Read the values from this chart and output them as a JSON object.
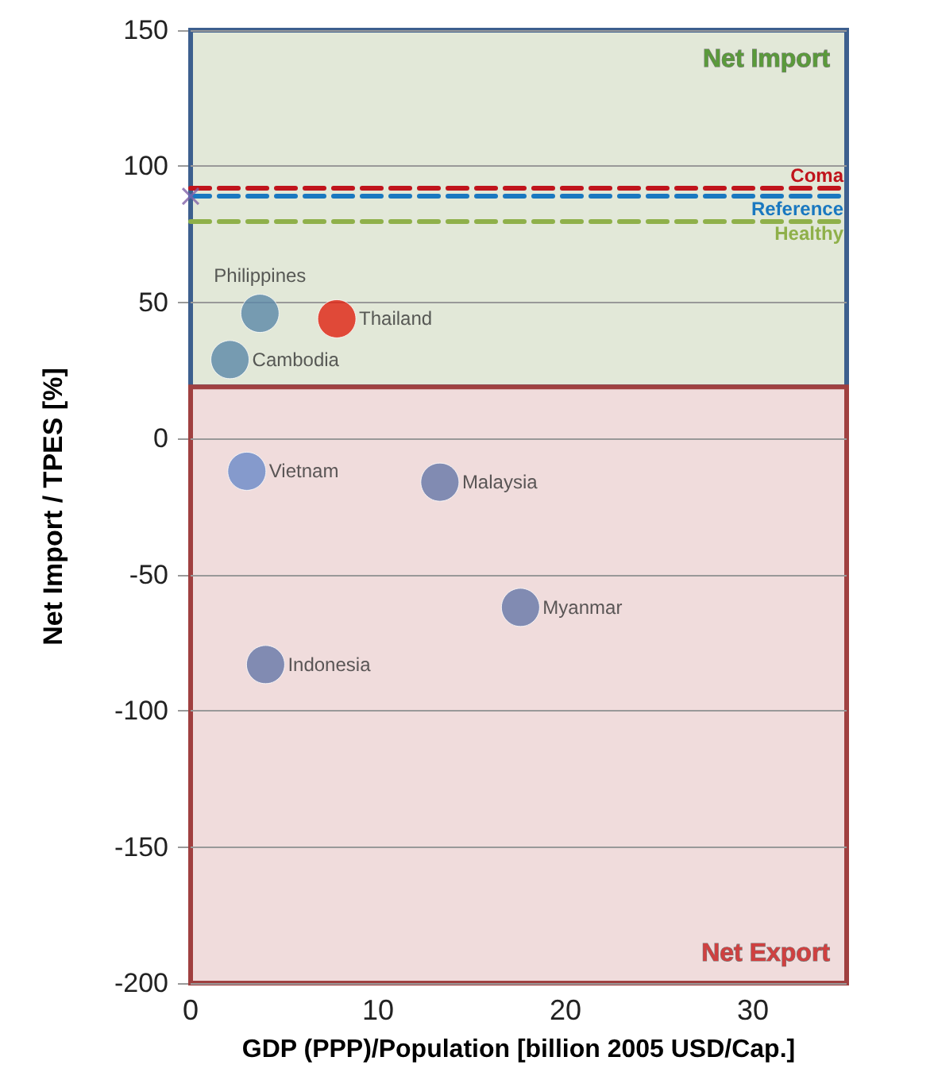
{
  "chart_data": {
    "type": "scatter",
    "xlabel": "GDP (PPP)/Population [billion 2005 USD/Cap.]",
    "ylabel": "Net Import / TPES [%]",
    "series": [
      {
        "type": "scatter",
        "x": [
          3.7,
          7.8,
          2.1,
          3.0,
          13.3,
          17.6,
          4.0
        ],
        "values": [
          46,
          44,
          29,
          -12,
          -16,
          -62,
          -83
        ],
        "colors": [
          "#5b87a8",
          "#e02010",
          "#5b87a8",
          "#6a8ac8",
          "#6577a8",
          "#6577a8",
          "#6577a8"
        ],
        "marker": "circle"
      },
      {
        "type": "scatter",
        "x": [
          0
        ],
        "values": [
          89
        ],
        "color": "#8060a8",
        "marker": "cross"
      }
    ],
    "annotations": [
      {
        "text": "Philippines",
        "x": 3.7,
        "y": 46
      },
      {
        "text": "Thailand",
        "x": 7.8,
        "y": 44
      },
      {
        "text": "Cambodia",
        "x": 2.1,
        "y": 29
      },
      {
        "text": "Vietnam",
        "x": 3.0,
        "y": -12
      },
      {
        "text": "Malaysia",
        "x": 13.3,
        "y": -16
      },
      {
        "text": "Myanmar",
        "x": 17.6,
        "y": -62
      },
      {
        "text": "Indonesia",
        "x": 4.0,
        "y": -83
      }
    ],
    "ref_lines": [
      {
        "axis": "y",
        "value": 92,
        "label": "Coma",
        "color": "#c0141c",
        "line_style": "dashed"
      },
      {
        "axis": "y",
        "value": 89,
        "label": "Reference",
        "color": "#1a78c0",
        "line_style": "dashed"
      },
      {
        "axis": "y",
        "value": 80,
        "label": "Healthy",
        "color": "#8fb04a",
        "line_style": "dashed"
      }
    ],
    "bands": [
      {
        "axis": "y",
        "from": 19,
        "to": 150,
        "label": "Net Import",
        "color": "#e2e8d8"
      },
      {
        "axis": "y",
        "from": -200,
        "to": 19,
        "label": "Net Export",
        "color": "#f0dcdc"
      }
    ],
    "xlim": [
      0,
      35
    ],
    "xticks": [
      0,
      10,
      20,
      30
    ],
    "ylim": [
      -200,
      150
    ],
    "yticks": [
      -200,
      -150,
      -100,
      -50,
      0,
      50,
      100,
      150
    ],
    "grid": "y",
    "legend": false
  }
}
